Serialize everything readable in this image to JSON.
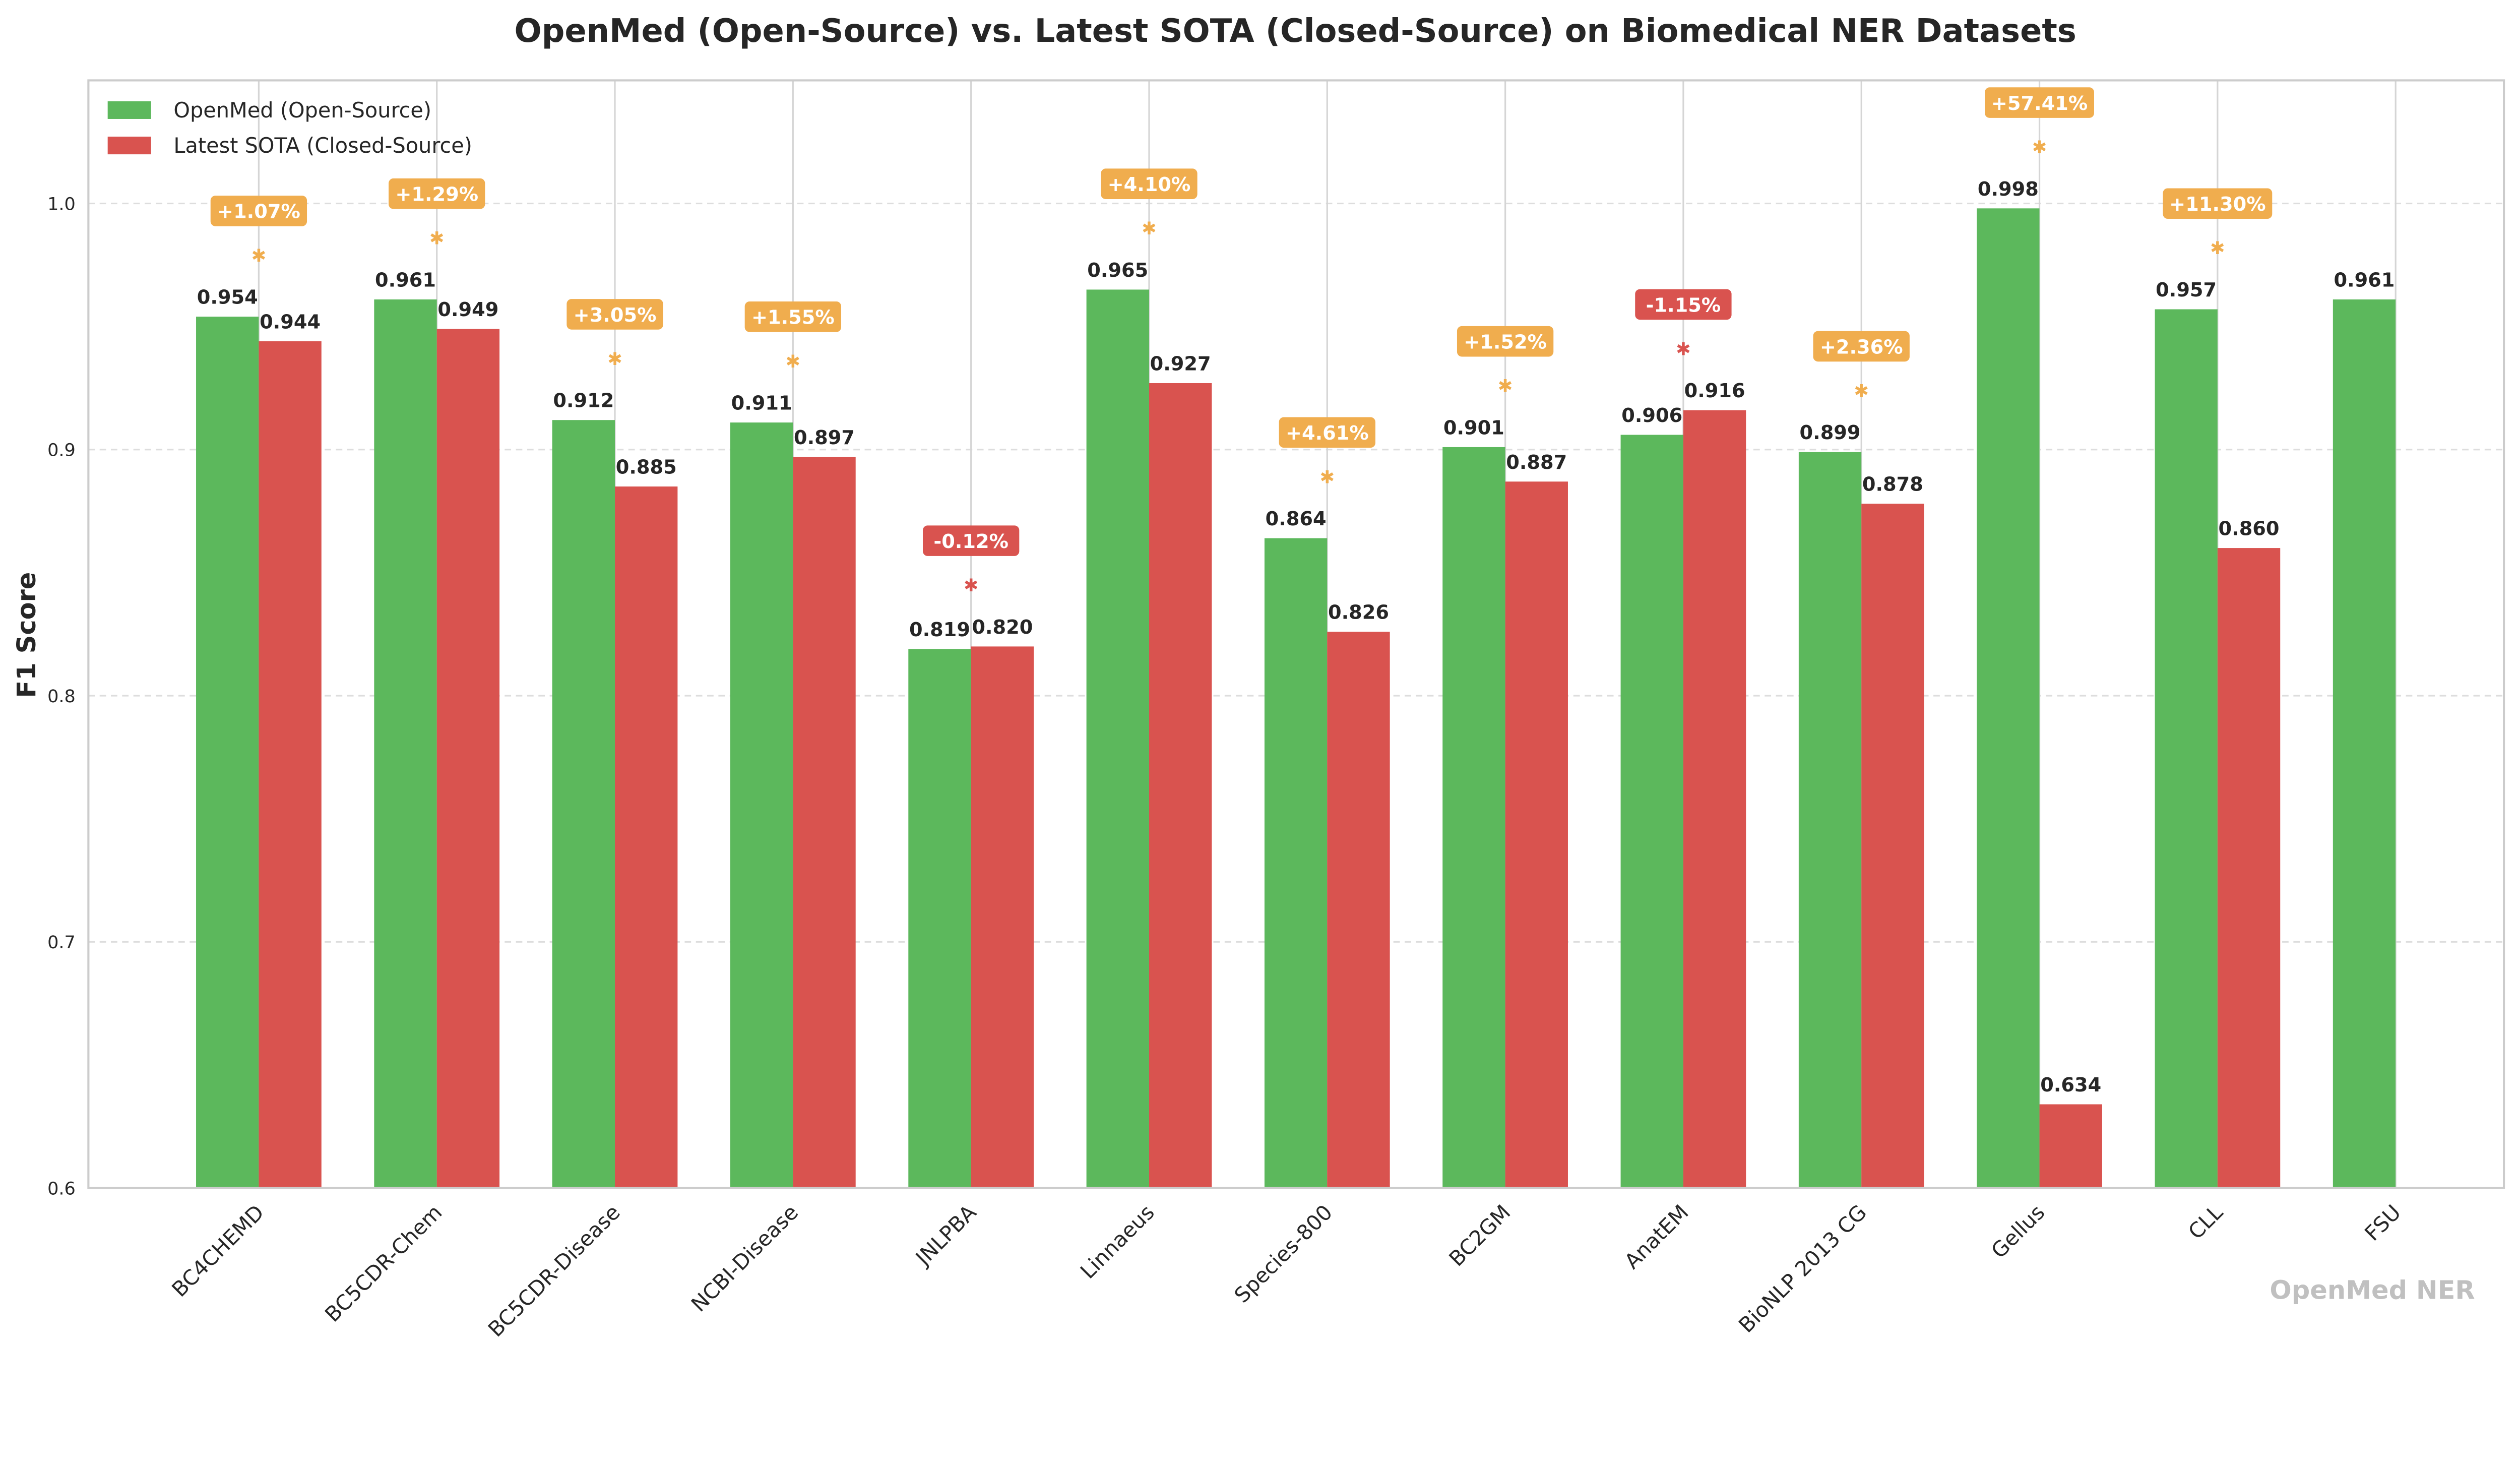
{
  "chart_data": {
    "type": "bar",
    "title": "OpenMed (Open-Source) vs. Latest SOTA (Closed-Source) on Biomedical NER Datasets",
    "xlabel": "",
    "ylabel": "F1 Score",
    "ylim": [
      0.6,
      1.05
    ],
    "yticks": [
      0.6,
      0.7,
      0.8,
      0.9,
      1.0
    ],
    "ytick_labels": [
      "0.6",
      "0.7",
      "0.8",
      "0.9",
      "1.0"
    ],
    "grid": true,
    "legend_position": "top-left",
    "categories": [
      "BC4CHEMD",
      "BC5CDR-Chem",
      "BC5CDR-Disease",
      "NCBI-Disease",
      "JNLPBA",
      "Linnaeus",
      "Species-800",
      "BC2GM",
      "AnatEM",
      "BioNLP 2013 CG",
      "Gellus",
      "CLL",
      "FSU"
    ],
    "series": [
      {
        "name": "OpenMed (Open-Source)",
        "color": "#5cb85c",
        "values": [
          0.954,
          0.961,
          0.912,
          0.911,
          0.819,
          0.965,
          0.864,
          0.901,
          0.906,
          0.899,
          0.998,
          0.957,
          0.961
        ],
        "labels": [
          "0.954",
          "0.961",
          "0.912",
          "0.911",
          "0.819",
          "0.965",
          "0.864",
          "0.901",
          "0.906",
          "0.899",
          "0.998",
          "0.957",
          "0.961"
        ]
      },
      {
        "name": "Latest SOTA (Closed-Source)",
        "color": "#d9534f",
        "values": [
          0.944,
          0.949,
          0.885,
          0.897,
          0.82,
          0.927,
          0.826,
          0.887,
          0.916,
          0.878,
          0.634,
          0.86,
          null
        ],
        "labels": [
          "0.944",
          "0.949",
          "0.885",
          "0.897",
          "0.820",
          "0.927",
          "0.826",
          "0.887",
          "0.916",
          "0.878",
          "0.634",
          "0.860",
          null
        ]
      }
    ],
    "annotations": [
      "+1.07%",
      "+1.29%",
      "+3.05%",
      "+1.55%",
      "-0.12%",
      "+4.10%",
      "+4.61%",
      "+1.52%",
      "-1.15%",
      "+2.36%",
      "+57.41%",
      "+11.30%",
      null
    ],
    "annotation_colors": {
      "positive": "#f0ad4e",
      "negative": "#d9534f"
    },
    "watermark": "OpenMed NER"
  }
}
